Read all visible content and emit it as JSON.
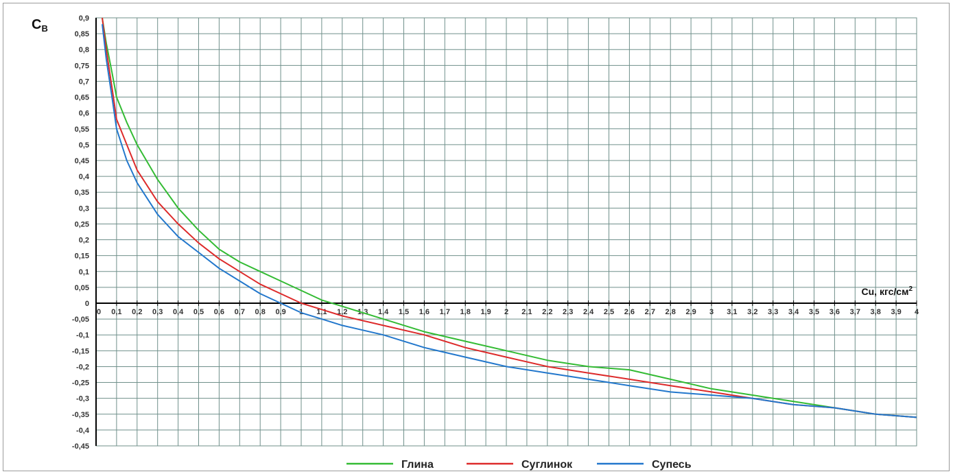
{
  "chart_data": {
    "type": "line",
    "ylabel_main": "C",
    "ylabel_sub": "B",
    "xlabel": "Cu, кгс/см",
    "xlabel_sup": "2",
    "xlim": [
      0,
      4
    ],
    "ylim": [
      -0.45,
      0.9
    ],
    "grid": true,
    "legend_position": "bottom-center",
    "x_ticks": [
      "0",
      "0,1",
      "0,2",
      "0,3",
      "0,4",
      "0,5",
      "0,6",
      "0,7",
      "0,8",
      "0,9",
      "1",
      "1,1",
      "1,2",
      "1,3",
      "1,4",
      "1,5",
      "1,6",
      "1,7",
      "1,8",
      "1,9",
      "2",
      "2,1",
      "2,2",
      "2,3",
      "2,4",
      "2,5",
      "2,6",
      "2,7",
      "2,8",
      "2,9",
      "3",
      "3,1",
      "3,2",
      "3,3",
      "3,4",
      "3,5",
      "3,6",
      "3,7",
      "3,8",
      "3,9",
      "4"
    ],
    "y_ticks": [
      "0,9",
      "0,85",
      "0,8",
      "0,75",
      "0,7",
      "0,65",
      "0,6",
      "0,55",
      "0,5",
      "0,45",
      "0,4",
      "0,35",
      "0,3",
      "0,25",
      "0,2",
      "0,15",
      "0,1",
      "0,05",
      "0",
      "-0,05",
      "-0,1",
      "-0,15",
      "-0,2",
      "-0,25",
      "-0,3",
      "-0,35",
      "-0,4",
      "-0,45"
    ],
    "series": [
      {
        "name": "Глина",
        "color": "#33bb33",
        "x": [
          0.03,
          0.05,
          0.08,
          0.1,
          0.15,
          0.2,
          0.3,
          0.4,
          0.5,
          0.6,
          0.7,
          0.8,
          0.9,
          1.0,
          1.1,
          1.2,
          1.4,
          1.6,
          1.8,
          2.0,
          2.2,
          2.4,
          2.6,
          2.8,
          3.0,
          3.2,
          3.4,
          3.6,
          3.8,
          4.0
        ],
        "y": [
          0.9,
          0.82,
          0.72,
          0.65,
          0.57,
          0.5,
          0.39,
          0.3,
          0.23,
          0.17,
          0.13,
          0.1,
          0.07,
          0.04,
          0.01,
          -0.01,
          -0.05,
          -0.09,
          -0.12,
          -0.15,
          -0.18,
          -0.2,
          -0.21,
          -0.24,
          -0.27,
          -0.29,
          -0.31,
          -0.33,
          -0.35,
          -0.36
        ]
      },
      {
        "name": "Суглинок",
        "color": "#dd2a2a",
        "x": [
          0.03,
          0.05,
          0.08,
          0.1,
          0.15,
          0.2,
          0.3,
          0.4,
          0.5,
          0.6,
          0.7,
          0.8,
          0.9,
          1.0,
          1.1,
          1.2,
          1.4,
          1.6,
          1.8,
          2.0,
          2.2,
          2.4,
          2.6,
          2.8,
          3.0,
          3.2,
          3.4,
          3.6,
          3.8,
          4.0
        ],
        "y": [
          0.9,
          0.8,
          0.67,
          0.58,
          0.5,
          0.42,
          0.32,
          0.25,
          0.19,
          0.14,
          0.1,
          0.06,
          0.03,
          0.0,
          -0.02,
          -0.04,
          -0.07,
          -0.1,
          -0.14,
          -0.17,
          -0.2,
          -0.22,
          -0.24,
          -0.26,
          -0.28,
          -0.3,
          -0.32,
          -0.33,
          -0.35,
          -0.36
        ]
      },
      {
        "name": "Супесь",
        "color": "#2277cc",
        "x": [
          0.03,
          0.05,
          0.08,
          0.1,
          0.15,
          0.2,
          0.3,
          0.4,
          0.5,
          0.6,
          0.7,
          0.8,
          0.9,
          1.0,
          1.1,
          1.2,
          1.4,
          1.6,
          1.8,
          2.0,
          2.2,
          2.4,
          2.6,
          2.8,
          3.0,
          3.2,
          3.4,
          3.6,
          3.8,
          4.0
        ],
        "y": [
          0.88,
          0.77,
          0.64,
          0.55,
          0.45,
          0.38,
          0.28,
          0.21,
          0.16,
          0.11,
          0.07,
          0.03,
          0.0,
          -0.03,
          -0.05,
          -0.07,
          -0.1,
          -0.14,
          -0.17,
          -0.2,
          -0.22,
          -0.24,
          -0.26,
          -0.28,
          -0.29,
          -0.3,
          -0.32,
          -0.33,
          -0.35,
          -0.36
        ]
      }
    ]
  }
}
